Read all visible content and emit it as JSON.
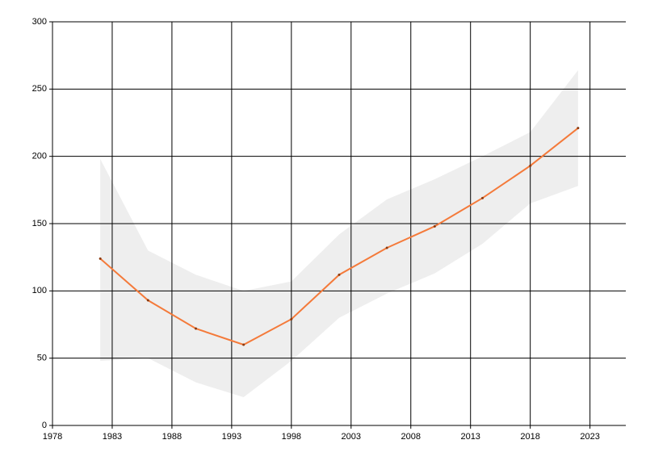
{
  "chart_data": {
    "type": "line",
    "x": [
      1982,
      1986,
      1990,
      1994,
      1998,
      2002,
      2006,
      2010,
      2014,
      2018,
      2022
    ],
    "values": [
      124,
      93,
      72,
      60,
      79,
      112,
      132,
      148,
      169,
      193,
      221
    ],
    "upper": [
      198,
      130,
      112,
      100,
      107,
      142,
      168,
      183,
      200,
      218,
      264
    ],
    "lower": [
      48,
      50,
      32,
      21,
      48,
      80,
      98,
      113,
      135,
      165,
      178
    ],
    "color": "#f47a3a",
    "band_color": "#eeeeee",
    "grid_color": "#000000",
    "xlim": [
      1978,
      2026
    ],
    "xticks": [
      1978,
      1983,
      1988,
      1993,
      1998,
      2003,
      2008,
      2013,
      2018,
      2023
    ],
    "ylim": [
      0,
      300
    ],
    "yticks": [
      0,
      50,
      100,
      150,
      200,
      250,
      300
    ],
    "grid": true
  }
}
